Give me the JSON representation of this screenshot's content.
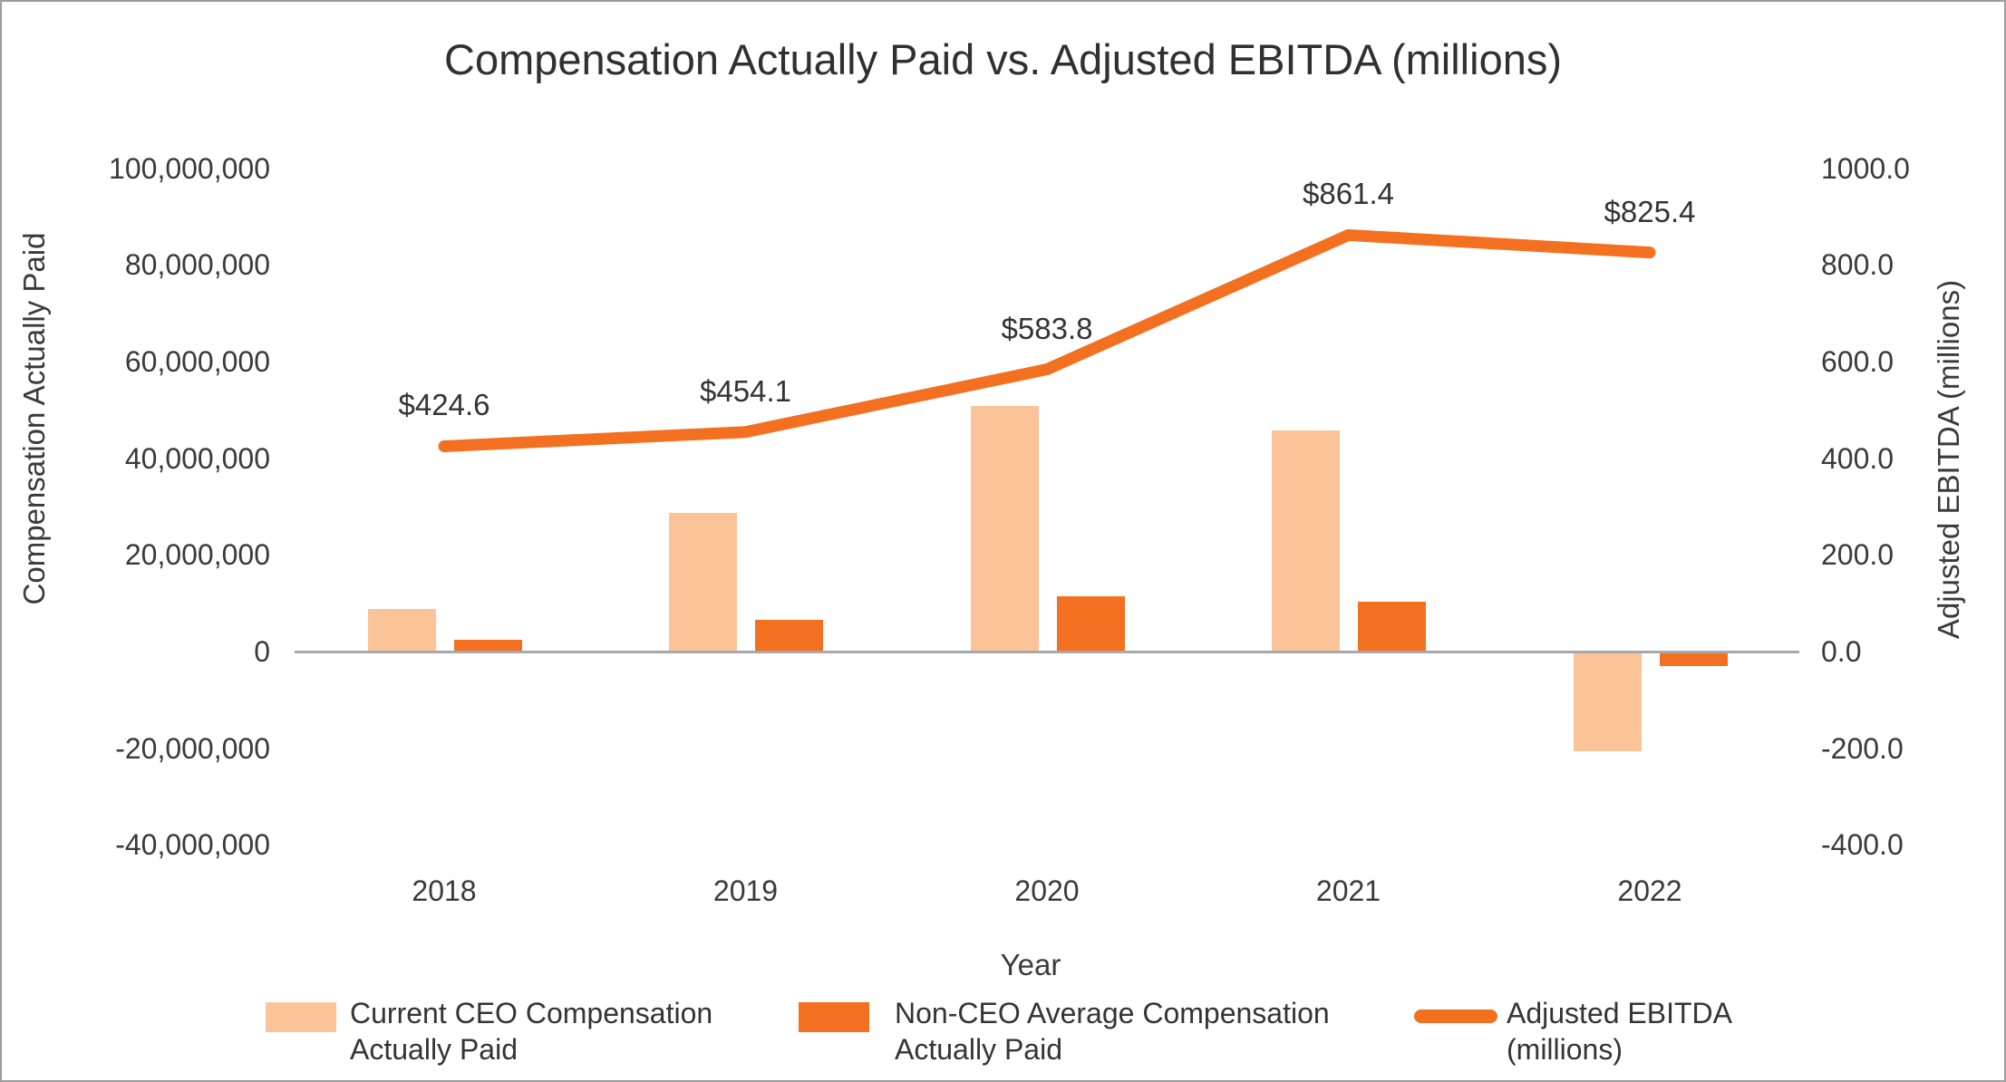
{
  "title": "Compensation Actually Paid vs. Adjusted EBITDA (millions)",
  "axes": {
    "left": {
      "title": "Compensation Actually Paid",
      "ticks": [
        {
          "label": "100,000,000",
          "value": 100000000
        },
        {
          "label": "80,000,000",
          "value": 80000000
        },
        {
          "label": "60,000,000",
          "value": 60000000
        },
        {
          "label": "40,000,000",
          "value": 40000000
        },
        {
          "label": "20,000,000",
          "value": 20000000
        },
        {
          "label": "0",
          "value": 0
        },
        {
          "label": "-20,000,000",
          "value": -20000000
        },
        {
          "label": "-40,000,000",
          "value": -40000000
        }
      ]
    },
    "right": {
      "title": "Adjusted EBITDA (millions)",
      "ticks": [
        {
          "label": "1000.0",
          "value": 1000
        },
        {
          "label": "800.0",
          "value": 800
        },
        {
          "label": "600.0",
          "value": 600
        },
        {
          "label": "400.0",
          "value": 400
        },
        {
          "label": "200.0",
          "value": 200
        },
        {
          "label": "0.0",
          "value": 0
        },
        {
          "label": "-200.0",
          "value": -200
        },
        {
          "label": "-400.0",
          "value": -400
        }
      ]
    },
    "x": {
      "title": "Year",
      "categories": [
        "2018",
        "2019",
        "2020",
        "2021",
        "2022"
      ]
    }
  },
  "legend": {
    "items": [
      {
        "line1": "Current CEO Compensation",
        "line2": "Actually Paid",
        "swatch": "bar_light"
      },
      {
        "line1": "Non-CEO Average Compensation",
        "line2": "Actually Paid",
        "swatch": "bar_dark"
      },
      {
        "line1": "Adjusted EBITDA",
        "line2": "(millions)",
        "swatch": "line"
      }
    ]
  },
  "colors": {
    "bar_light": "#FBC498",
    "bar_dark": "#F37021",
    "line": "#F37021",
    "zero_line": "#A8A8A8",
    "text": "#3A3A3A",
    "border": "#9D9D9D"
  },
  "chart_data": {
    "type": "combo-bar-line",
    "title": "Compensation Actually Paid vs. Adjusted EBITDA (millions)",
    "xlabel": "Year",
    "ylabel_left": "Compensation Actually Paid",
    "ylabel_right": "Adjusted EBITDA (millions)",
    "categories": [
      "2018",
      "2019",
      "2020",
      "2021",
      "2022"
    ],
    "series": [
      {
        "name": "Current CEO Compensation Actually Paid",
        "type": "bar",
        "axis": "left",
        "values": [
          8600000,
          28500000,
          50700000,
          45500000,
          -20200000
        ]
      },
      {
        "name": "Non-CEO Average Compensation Actually Paid",
        "type": "bar",
        "axis": "left",
        "values": [
          2200000,
          6400000,
          11200000,
          10200000,
          -2700000
        ]
      },
      {
        "name": "Adjusted EBITDA (millions)",
        "type": "line",
        "axis": "right",
        "values": [
          424.6,
          454.1,
          583.8,
          861.4,
          825.4
        ],
        "point_labels": [
          "$424.6",
          "$454.1",
          "$583.8",
          "$861.4",
          "$825.4"
        ]
      }
    ],
    "left_ylim": [
      -40000000,
      100000000
    ],
    "right_ylim": [
      -400,
      1000
    ],
    "grid": false,
    "legend_position": "bottom"
  }
}
